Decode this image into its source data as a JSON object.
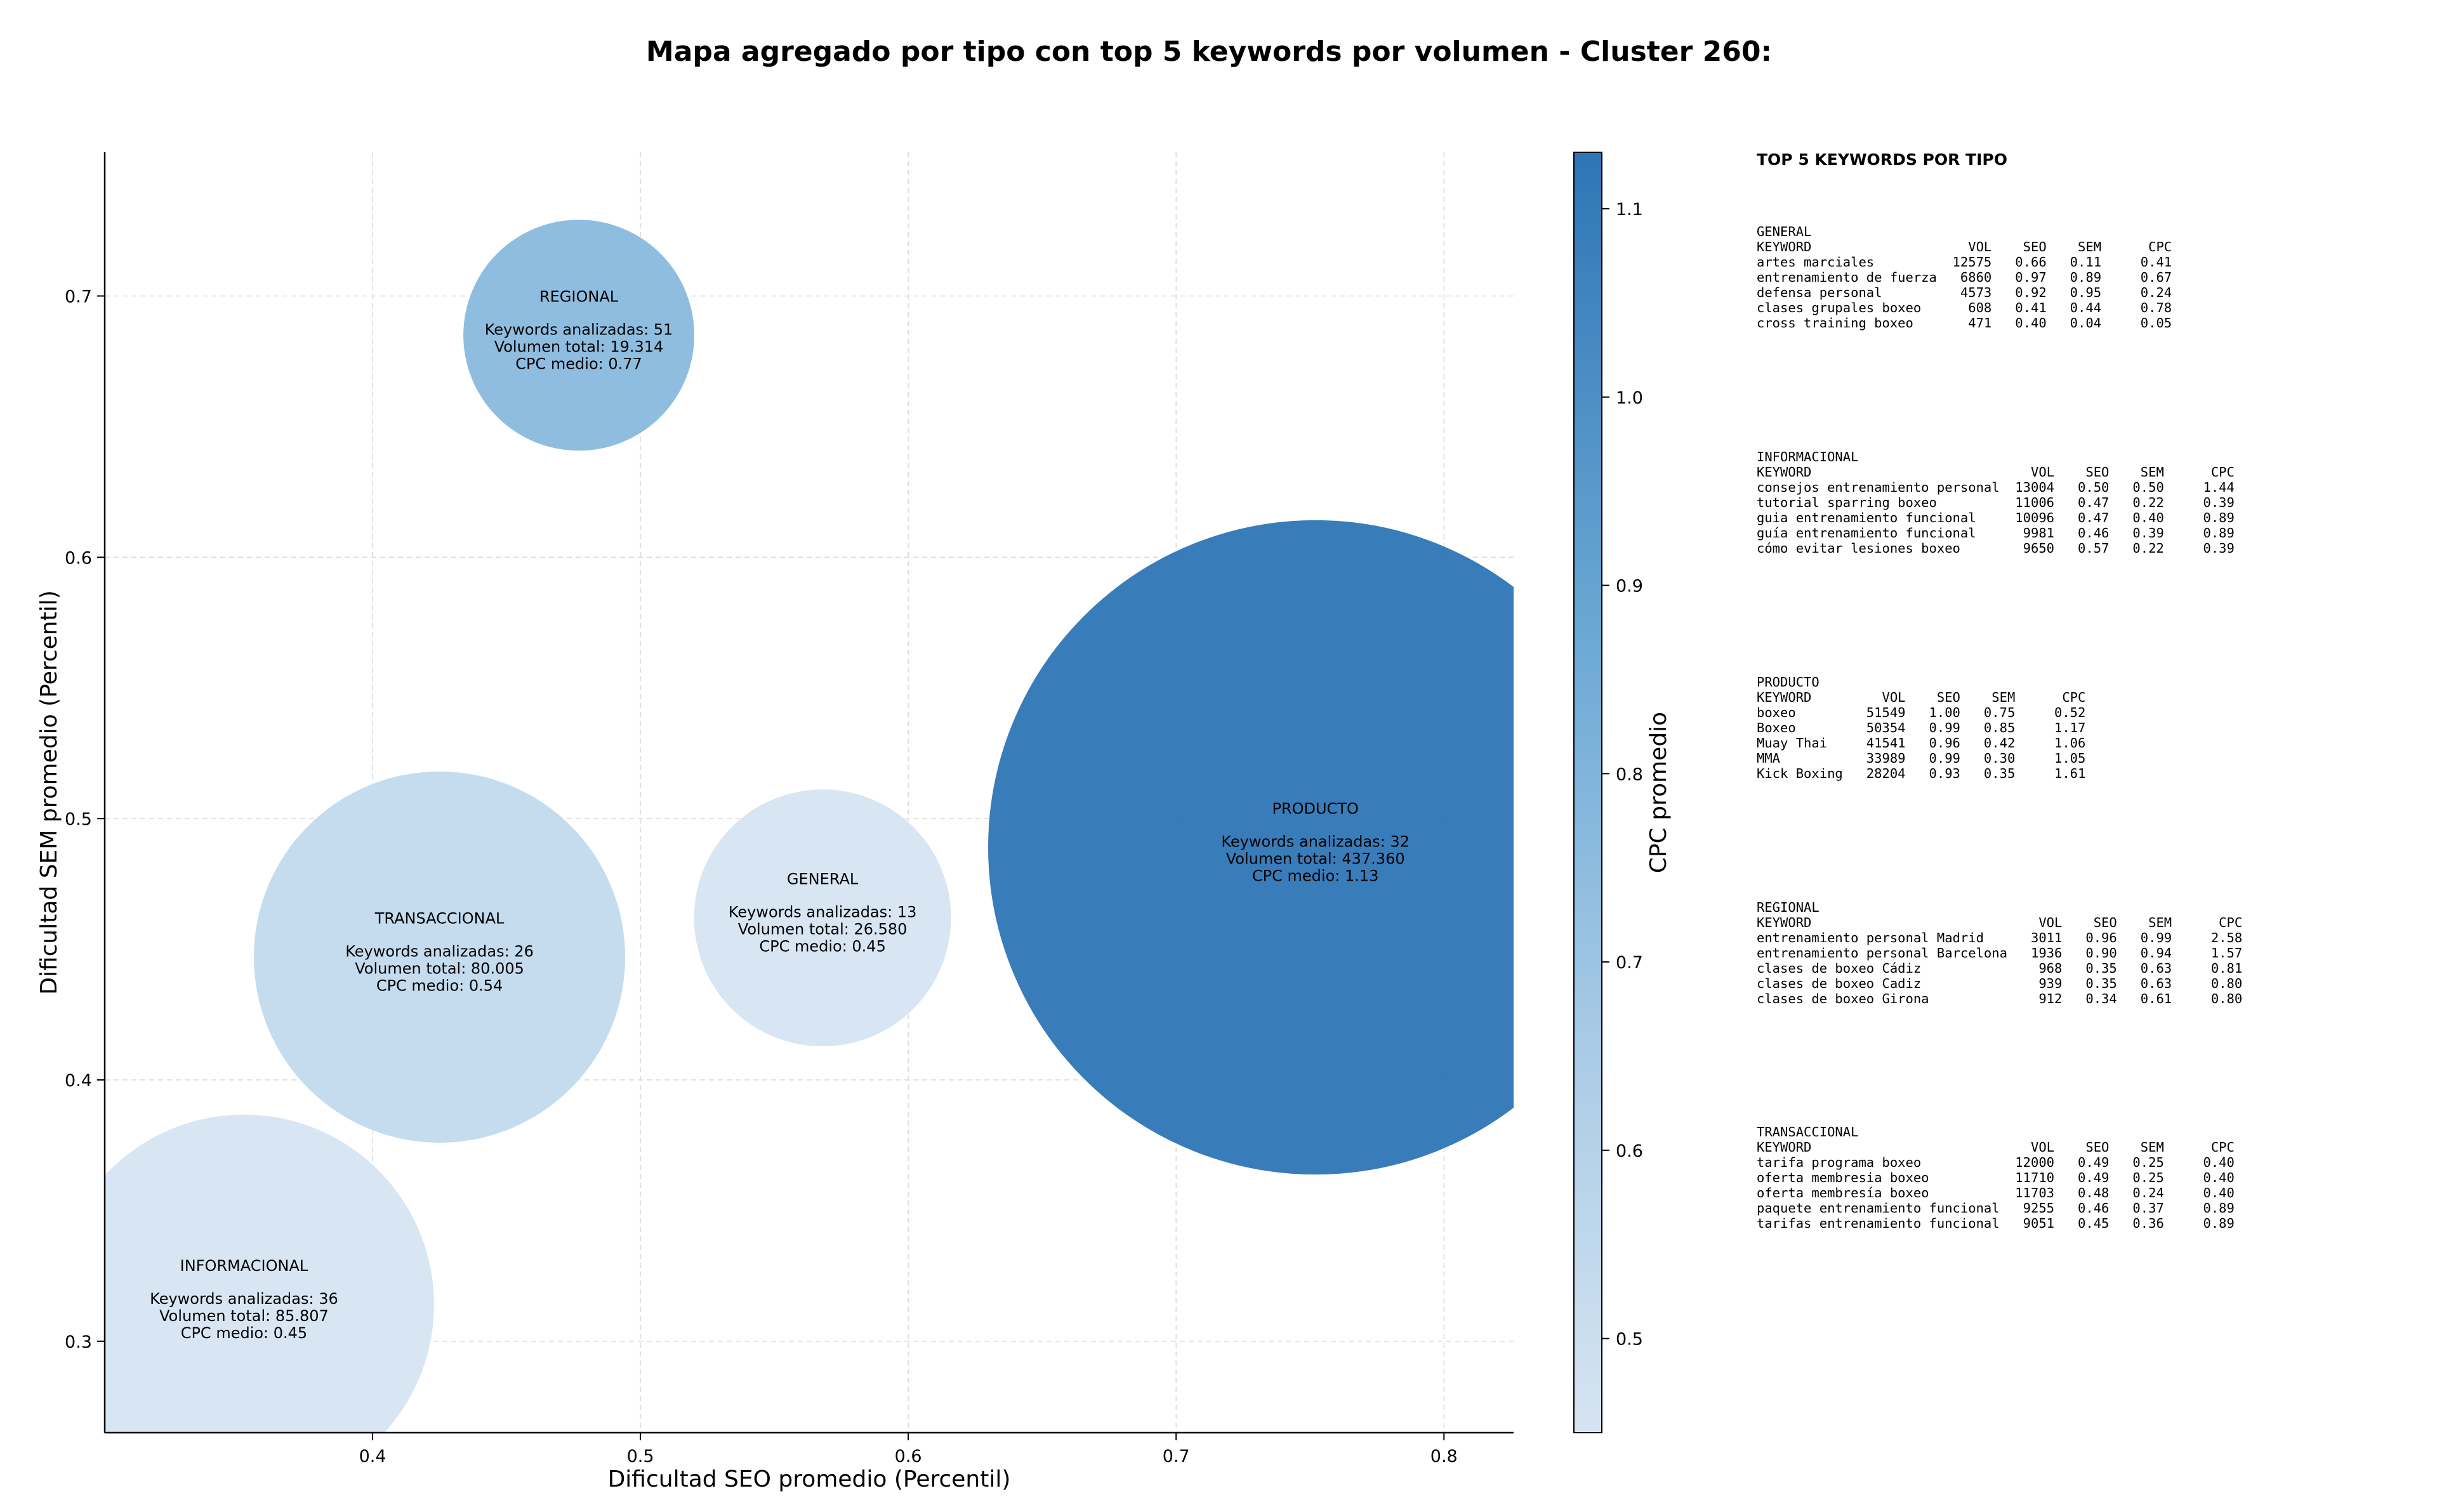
{
  "chart_data": {
    "type": "scatter",
    "title": "Mapa agregado por tipo con top 5 keywords por volumen - Cluster 260:",
    "xlabel": "Dificultad SEO promedio (Percentil)",
    "ylabel": "Dificultad SEM promedio (Percentil)",
    "xlim": [
      0.3,
      0.826
    ],
    "ylim": [
      0.265,
      0.755
    ],
    "xticks": [
      "0.4",
      "0.5",
      "0.6",
      "0.7",
      "0.8"
    ],
    "yticks": [
      "0.3",
      "0.4",
      "0.5",
      "0.6",
      "0.7"
    ],
    "grid": true,
    "colorbar": {
      "label": "CPC promedio",
      "min": 0.45,
      "max": 1.13,
      "ticks": [
        "0.5",
        "0.6",
        "0.7",
        "0.8",
        "0.9",
        "1.0",
        "1.1"
      ],
      "color_low": "#d6e4f2",
      "color_high": "#2e75b6"
    },
    "points": [
      {
        "tipo": "REGIONAL",
        "x": 0.477,
        "y": 0.685,
        "keywords": "Keywords analizadas: 51",
        "volumen": "Volumen total: 19.314",
        "cpc_text": "CPC medio: 0.77",
        "cpc": 0.77,
        "volume": 19314
      },
      {
        "tipo": "PRODUCTO",
        "x": 0.752,
        "y": 0.489,
        "keywords": "Keywords analizadas: 32",
        "volumen": "Volumen total: 437.360",
        "cpc_text": "CPC medio: 1.13",
        "cpc": 1.13,
        "volume": 437360
      },
      {
        "tipo": "GENERAL",
        "x": 0.568,
        "y": 0.462,
        "keywords": "Keywords analizadas: 13",
        "volumen": "Volumen total: 26.580",
        "cpc_text": "CPC medio: 0.45",
        "cpc": 0.45,
        "volume": 26580
      },
      {
        "tipo": "TRANSACCIONAL",
        "x": 0.425,
        "y": 0.447,
        "keywords": "Keywords analizadas: 26",
        "volumen": "Volumen total: 80.005",
        "cpc_text": "CPC medio: 0.54",
        "cpc": 0.54,
        "volume": 80005
      },
      {
        "tipo": "INFORMACIONAL",
        "x": 0.352,
        "y": 0.314,
        "keywords": "Keywords analizadas: 36",
        "volumen": "Volumen total: 85.807",
        "cpc_text": "CPC medio: 0.45",
        "cpc": 0.45,
        "volume": 85807
      }
    ]
  },
  "side_panel": {
    "heading": "TOP 5 KEYWORDS POR TIPO",
    "blocks": [
      {
        "tipo": "GENERAL",
        "lines": [
          "KEYWORD                    VOL    SEO    SEM      CPC",
          "artes marciales          12575   0.66   0.11     0.41",
          "entrenamiento de fuerza   6860   0.97   0.89     0.67",
          "defensa personal          4573   0.92   0.95     0.24",
          "clases grupales boxeo      608   0.41   0.44     0.78",
          "cross training boxeo       471   0.40   0.04     0.05"
        ]
      },
      {
        "tipo": "INFORMACIONAL",
        "lines": [
          "KEYWORD                            VOL    SEO    SEM      CPC",
          "consejos entrenamiento personal  13004   0.50   0.50     1.44",
          "tutorial sparring boxeo          11006   0.47   0.22     0.39",
          "guia entrenamiento funcional     10096   0.47   0.40     0.89",
          "guía entrenamiento funcional      9981   0.46   0.39     0.89",
          "cómo evitar lesiones boxeo        9650   0.57   0.22     0.39"
        ]
      },
      {
        "tipo": "PRODUCTO",
        "lines": [
          "KEYWORD         VOL    SEO    SEM      CPC",
          "boxeo         51549   1.00   0.75     0.52",
          "Boxeo         50354   0.99   0.85     1.17",
          "Muay Thai     41541   0.96   0.42     1.06",
          "MMA           33989   0.99   0.30     1.05",
          "Kick Boxing   28204   0.93   0.35     1.61"
        ]
      },
      {
        "tipo": "REGIONAL",
        "lines": [
          "KEYWORD                             VOL    SEO    SEM      CPC",
          "entrenamiento personal Madrid      3011   0.96   0.99     2.58",
          "entrenamiento personal Barcelona   1936   0.90   0.94     1.57",
          "clases de boxeo Cádiz               968   0.35   0.63     0.81",
          "clases de boxeo Cadiz               939   0.35   0.63     0.80",
          "clases de boxeo Girona              912   0.34   0.61     0.80"
        ]
      },
      {
        "tipo": "TRANSACCIONAL",
        "lines": [
          "KEYWORD                            VOL    SEO    SEM      CPC",
          "tarifa programa boxeo            12000   0.49   0.25     0.40",
          "oferta membresia boxeo           11710   0.49   0.25     0.40",
          "oferta membresía boxeo           11703   0.48   0.24     0.40",
          "paquete entrenamiento funcional   9255   0.46   0.37     0.89",
          "tarifas entrenamiento funcional   9051   0.45   0.36     0.89"
        ]
      }
    ]
  }
}
